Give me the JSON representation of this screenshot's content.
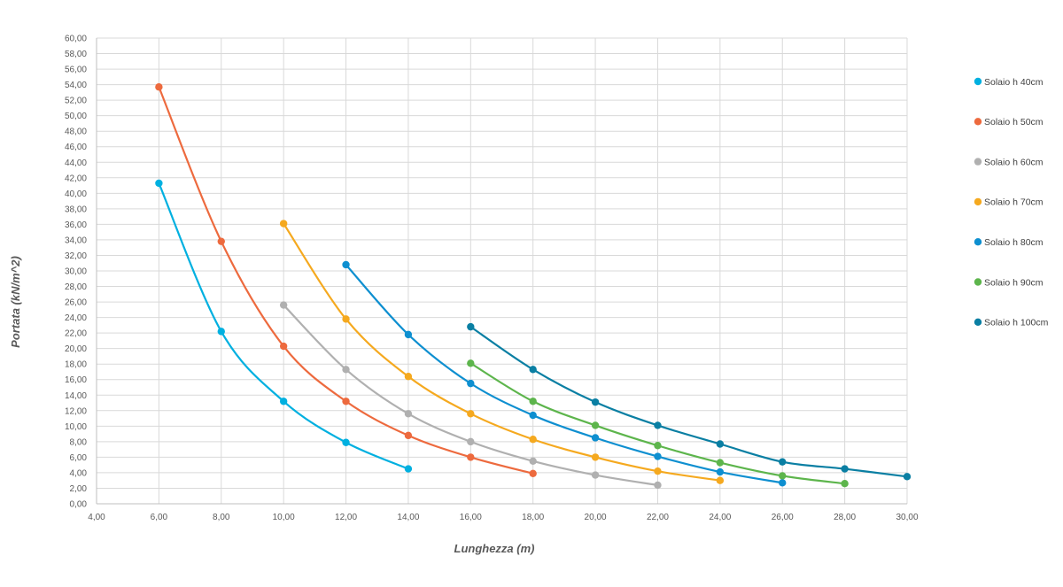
{
  "chart_data": {
    "type": "scatter",
    "title": "",
    "xlabel": "Lunghezza (m)",
    "ylabel": "Portata (kN/m^2)",
    "xlim": [
      4,
      30
    ],
    "ylim": [
      0,
      60
    ],
    "x_tick_step": 2,
    "y_tick_step": 2,
    "tick_decimals": 2,
    "decimal_separator": ",",
    "grid": true,
    "smooth_lines": true,
    "legend_position": "right",
    "series": [
      {
        "name": "Solaio h 40cm",
        "color": "#00B0E0",
        "points": [
          [
            6,
            41.3
          ],
          [
            8,
            22.2
          ],
          [
            10,
            13.2
          ],
          [
            12,
            7.9
          ],
          [
            14,
            4.5
          ]
        ]
      },
      {
        "name": "Solaio h 50cm",
        "color": "#ED6A3E",
        "points": [
          [
            6,
            53.7
          ],
          [
            8,
            33.8
          ],
          [
            10,
            20.3
          ],
          [
            12,
            13.2
          ],
          [
            14,
            8.8
          ],
          [
            16,
            6.0
          ],
          [
            18,
            3.9
          ]
        ]
      },
      {
        "name": "Solaio h 60cm",
        "color": "#B0B0B0",
        "points": [
          [
            10,
            25.6
          ],
          [
            12,
            17.3
          ],
          [
            14,
            11.6
          ],
          [
            16,
            8.0
          ],
          [
            18,
            5.5
          ],
          [
            20,
            3.7
          ],
          [
            22,
            2.4
          ]
        ]
      },
      {
        "name": "Solaio h 70cm",
        "color": "#F5A91F",
        "points": [
          [
            10,
            36.1
          ],
          [
            12,
            23.8
          ],
          [
            14,
            16.4
          ],
          [
            16,
            11.6
          ],
          [
            18,
            8.3
          ],
          [
            20,
            6.0
          ],
          [
            22,
            4.2
          ],
          [
            24,
            3.0
          ]
        ]
      },
      {
        "name": "Solaio h 80cm",
        "color": "#0E8FD0",
        "points": [
          [
            12,
            30.8
          ],
          [
            14,
            21.8
          ],
          [
            16,
            15.5
          ],
          [
            18,
            11.4
          ],
          [
            20,
            8.5
          ],
          [
            22,
            6.1
          ],
          [
            24,
            4.1
          ],
          [
            26,
            2.7
          ]
        ]
      },
      {
        "name": "Solaio h 90cm",
        "color": "#5DB54C",
        "points": [
          [
            16,
            18.1
          ],
          [
            18,
            13.2
          ],
          [
            20,
            10.1
          ],
          [
            22,
            7.5
          ],
          [
            24,
            5.3
          ],
          [
            26,
            3.6
          ],
          [
            28,
            2.6
          ]
        ]
      },
      {
        "name": "Solaio h 100cm",
        "color": "#0A7FA3",
        "points": [
          [
            16,
            22.8
          ],
          [
            18,
            17.3
          ],
          [
            20,
            13.1
          ],
          [
            22,
            10.1
          ],
          [
            24,
            7.7
          ],
          [
            26,
            5.4
          ],
          [
            28,
            4.5
          ],
          [
            30,
            3.5
          ]
        ]
      }
    ]
  }
}
